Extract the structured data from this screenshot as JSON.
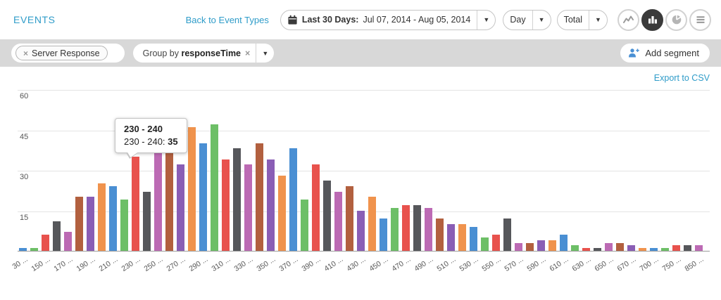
{
  "header": {
    "title": "EVENTS",
    "back_link": "Back to Event Types",
    "date_range": {
      "bold": "Last 30 Days:",
      "text": "Jul 07, 2014 - Aug 05, 2014"
    },
    "interval_dropdown": "Day",
    "metric_dropdown": "Total",
    "view_icons": [
      "line-chart",
      "bar-chart",
      "pie-chart",
      "list"
    ],
    "active_view": "bar-chart"
  },
  "toolbar": {
    "event_chip": {
      "label": "Server Response"
    },
    "group_chip": {
      "prefix": "Group by ",
      "property": "responseTime"
    },
    "add_segment_label": "Add segment"
  },
  "export_link": "Export to CSV",
  "colors": {
    "accent_blue": "#2f9cc9",
    "toolbar_gray": "#d8d8d8",
    "active_button": "#3b3b3b"
  },
  "chart_data": {
    "type": "bar",
    "title": "",
    "xlabel": "",
    "ylabel": "",
    "ylim": [
      0,
      60
    ],
    "yticks": [
      15,
      30,
      45,
      60
    ],
    "grid": true,
    "legend": false,
    "palette": [
      "#4a8fd3",
      "#6dbf67",
      "#e8524d",
      "#56575b",
      "#bc6ab4",
      "#b2603f",
      "#8a5eb5",
      "#f0934d"
    ],
    "bars": [
      {
        "label": "30 ...",
        "value": 1
      },
      {
        "label": "",
        "value": 1
      },
      {
        "label": "150 ...",
        "value": 6
      },
      {
        "label": "",
        "value": 11
      },
      {
        "label": "170 ...",
        "value": 7
      },
      {
        "label": "",
        "value": 20
      },
      {
        "label": "190 ...",
        "value": 20
      },
      {
        "label": "",
        "value": 25
      },
      {
        "label": "210 ...",
        "value": 24
      },
      {
        "label": "",
        "value": 19
      },
      {
        "label": "230 ...",
        "value": 35
      },
      {
        "label": "",
        "value": 22
      },
      {
        "label": "250 ...",
        "value": 38
      },
      {
        "label": "",
        "value": 38
      },
      {
        "label": "270 ...",
        "value": 32
      },
      {
        "label": "",
        "value": 46
      },
      {
        "label": "290 ...",
        "value": 40
      },
      {
        "label": "",
        "value": 47
      },
      {
        "label": "310 ...",
        "value": 34
      },
      {
        "label": "",
        "value": 38
      },
      {
        "label": "330 ...",
        "value": 32
      },
      {
        "label": "",
        "value": 40
      },
      {
        "label": "350 ...",
        "value": 34
      },
      {
        "label": "",
        "value": 28
      },
      {
        "label": "370 ...",
        "value": 38
      },
      {
        "label": "",
        "value": 19
      },
      {
        "label": "390 ...",
        "value": 32
      },
      {
        "label": "",
        "value": 26
      },
      {
        "label": "410 ...",
        "value": 22
      },
      {
        "label": "",
        "value": 24
      },
      {
        "label": "430 ...",
        "value": 15
      },
      {
        "label": "",
        "value": 20
      },
      {
        "label": "450 ...",
        "value": 12
      },
      {
        "label": "",
        "value": 16
      },
      {
        "label": "470 ...",
        "value": 17
      },
      {
        "label": "",
        "value": 17
      },
      {
        "label": "490 ...",
        "value": 16
      },
      {
        "label": "",
        "value": 12
      },
      {
        "label": "510 ...",
        "value": 10
      },
      {
        "label": "",
        "value": 10
      },
      {
        "label": "530 ...",
        "value": 9
      },
      {
        "label": "",
        "value": 5
      },
      {
        "label": "550 ...",
        "value": 6
      },
      {
        "label": "",
        "value": 12
      },
      {
        "label": "570 ...",
        "value": 3
      },
      {
        "label": "",
        "value": 3
      },
      {
        "label": "590 ...",
        "value": 4
      },
      {
        "label": "",
        "value": 4
      },
      {
        "label": "610 ...",
        "value": 6
      },
      {
        "label": "",
        "value": 2
      },
      {
        "label": "630 ...",
        "value": 1
      },
      {
        "label": "",
        "value": 1
      },
      {
        "label": "650 ...",
        "value": 3
      },
      {
        "label": "",
        "value": 3
      },
      {
        "label": "670 ...",
        "value": 2
      },
      {
        "label": "",
        "value": 1
      },
      {
        "label": "700 ...",
        "value": 1
      },
      {
        "label": "",
        "value": 1
      },
      {
        "label": "750 ...",
        "value": 2
      },
      {
        "label": "",
        "value": 2
      },
      {
        "label": "850 ...",
        "value": 2
      }
    ],
    "tooltip": {
      "bar_index": 10,
      "title": "230 - 240",
      "label": "230 - 240: ",
      "value": "35"
    }
  }
}
